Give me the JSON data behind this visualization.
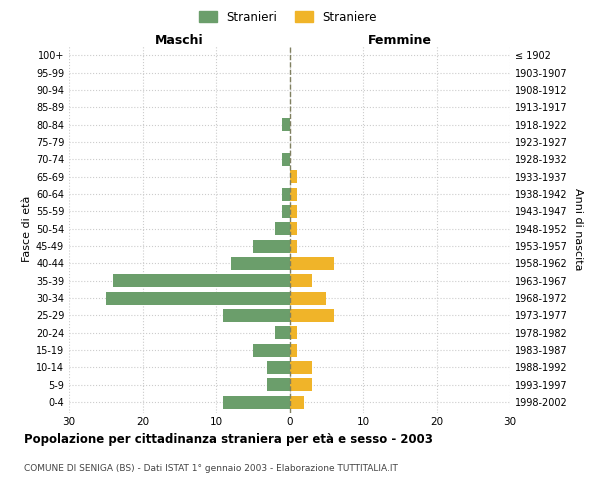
{
  "age_groups": [
    "0-4",
    "5-9",
    "10-14",
    "15-19",
    "20-24",
    "25-29",
    "30-34",
    "35-39",
    "40-44",
    "45-49",
    "50-54",
    "55-59",
    "60-64",
    "65-69",
    "70-74",
    "75-79",
    "80-84",
    "85-89",
    "90-94",
    "95-99",
    "100+"
  ],
  "birth_years": [
    "1998-2002",
    "1993-1997",
    "1988-1992",
    "1983-1987",
    "1978-1982",
    "1973-1977",
    "1968-1972",
    "1963-1967",
    "1958-1962",
    "1953-1957",
    "1948-1952",
    "1943-1947",
    "1938-1942",
    "1933-1937",
    "1928-1932",
    "1923-1927",
    "1918-1922",
    "1913-1917",
    "1908-1912",
    "1903-1907",
    "≤ 1902"
  ],
  "maschi": [
    9,
    3,
    3,
    5,
    2,
    9,
    25,
    24,
    8,
    5,
    2,
    1,
    1,
    0,
    1,
    0,
    1,
    0,
    0,
    0,
    0
  ],
  "femmine": [
    2,
    3,
    3,
    1,
    1,
    6,
    5,
    3,
    6,
    1,
    1,
    1,
    1,
    1,
    0,
    0,
    0,
    0,
    0,
    0,
    0
  ],
  "color_maschi": "#6b9e6b",
  "color_femmine": "#f0b429",
  "color_center_line": "#808060",
  "title": "Popolazione per cittadinanza straniera per età e sesso - 2003",
  "subtitle": "COMUNE DI SENIGA (BS) - Dati ISTAT 1° gennaio 2003 - Elaborazione TUTTITALIA.IT",
  "ylabel_left": "Fasce di età",
  "ylabel_right": "Anni di nascita",
  "xlabel_left": "Maschi",
  "xlabel_right": "Femmine",
  "legend_maschi": "Stranieri",
  "legend_femmine": "Straniere",
  "xlim": 30,
  "background_color": "#ffffff",
  "grid_color": "#cccccc"
}
